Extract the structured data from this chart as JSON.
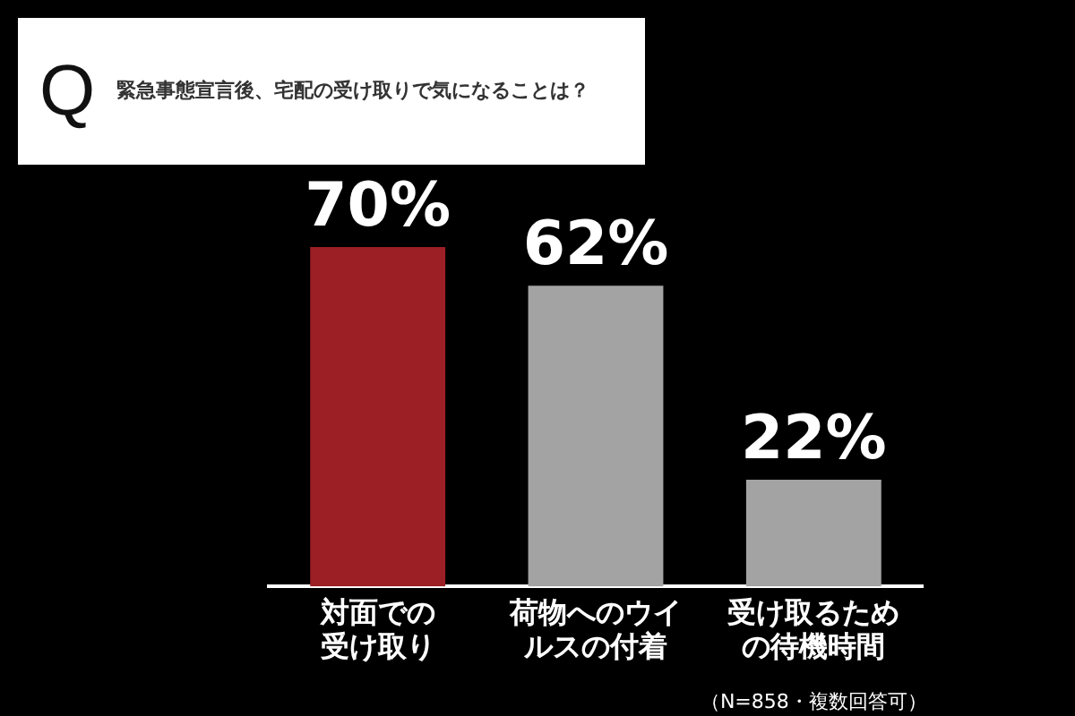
{
  "chart_data": {
    "type": "bar",
    "title": "Q",
    "subtitle": "緊急事態宣言後、宅配の受け取りで気になることは？",
    "categories": [
      "対面での受け取り",
      "荷物へのウイルスの付着",
      "受け取るための待機時間"
    ],
    "values": [
      70,
      62,
      22
    ],
    "colors": [
      "#9b1f24",
      "#a3a3a3",
      "#a3a3a3"
    ],
    "value_labels": [
      "70%",
      "62%",
      "22%"
    ],
    "annotations": [
      "（N=858・複数回答可）"
    ],
    "legend": false
  }
}
